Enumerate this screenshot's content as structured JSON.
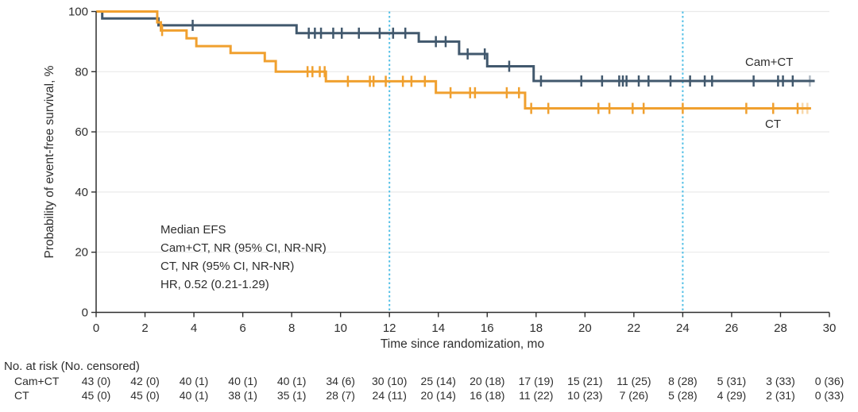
{
  "chart_data": {
    "type": "line",
    "subtype": "kaplan-meier-step",
    "title": "",
    "xlabel": "Time since randomization, mo",
    "ylabel": "Probability of event-free survival, %",
    "xlim": [
      0,
      30
    ],
    "ylim": [
      0,
      100
    ],
    "x_ticks": [
      0,
      2,
      4,
      6,
      8,
      10,
      12,
      14,
      16,
      18,
      20,
      22,
      24,
      26,
      28,
      30
    ],
    "y_ticks": [
      0,
      20,
      40,
      60,
      80,
      100
    ],
    "grid": "horizontal-light",
    "reference_lines_x": [
      12,
      24
    ],
    "colors": {
      "reference_line": "#55c0e6",
      "grid": "#eaeaea",
      "axis": "#2e2e2e"
    },
    "annotation": {
      "lines": [
        "Median EFS",
        "Cam+CT, NR (95% CI, NR-NR)",
        "CT, NR (95% CI, NR-NR)",
        "HR, 0.52 (0.21-1.29)"
      ]
    },
    "series": [
      {
        "name": "Cam+CT",
        "color": "#41586d",
        "steps": [
          [
            0,
            100
          ],
          [
            0.25,
            97.7
          ],
          [
            2.55,
            95.4
          ],
          [
            8.2,
            92.8
          ],
          [
            13.2,
            90.0
          ],
          [
            14.85,
            85.9
          ],
          [
            16.0,
            81.8
          ],
          [
            17.9,
            76.9
          ]
        ],
        "end_t": 29.4,
        "censors": [
          [
            3.95,
            95.4
          ],
          [
            8.7,
            92.8
          ],
          [
            8.95,
            92.8
          ],
          [
            9.2,
            92.8
          ],
          [
            9.7,
            92.8
          ],
          [
            10.05,
            92.8
          ],
          [
            10.75,
            92.8
          ],
          [
            11.6,
            92.8
          ],
          [
            12.15,
            92.8
          ],
          [
            12.65,
            92.8
          ],
          [
            13.9,
            90.0
          ],
          [
            14.3,
            90.0
          ],
          [
            15.2,
            85.9
          ],
          [
            15.9,
            85.9
          ],
          [
            16.9,
            81.8
          ],
          [
            18.2,
            76.9
          ],
          [
            19.85,
            76.9
          ],
          [
            20.7,
            76.9
          ],
          [
            21.4,
            76.9
          ],
          [
            21.55,
            76.9
          ],
          [
            21.7,
            76.9
          ],
          [
            22.2,
            76.9
          ],
          [
            22.6,
            76.9
          ],
          [
            23.5,
            76.9
          ],
          [
            24.3,
            76.9
          ],
          [
            24.9,
            76.9
          ],
          [
            25.2,
            76.9
          ],
          [
            26.9,
            76.9
          ],
          [
            27.9,
            76.9
          ],
          [
            28.1,
            76.9
          ],
          [
            28.5,
            76.9
          ]
        ],
        "light_censors": [
          [
            29.2,
            76.9
          ]
        ]
      },
      {
        "name": "CT",
        "color": "#f0a02f",
        "steps": [
          [
            0,
            100
          ],
          [
            2.5,
            96.4
          ],
          [
            2.65,
            93.7
          ],
          [
            3.7,
            91.1
          ],
          [
            4.1,
            88.5
          ],
          [
            5.5,
            86.2
          ],
          [
            6.9,
            83.5
          ],
          [
            7.35,
            80.0
          ],
          [
            9.4,
            76.8
          ],
          [
            13.9,
            73.0
          ],
          [
            17.55,
            67.8
          ]
        ],
        "end_t": 29.25,
        "censors": [
          [
            2.7,
            93.7
          ],
          [
            8.65,
            80.0
          ],
          [
            8.85,
            80.0
          ],
          [
            9.15,
            80.0
          ],
          [
            9.35,
            80.0
          ],
          [
            10.3,
            76.8
          ],
          [
            11.2,
            76.8
          ],
          [
            11.35,
            76.8
          ],
          [
            11.85,
            76.8
          ],
          [
            12.55,
            76.8
          ],
          [
            12.9,
            76.8
          ],
          [
            13.45,
            76.8
          ],
          [
            14.5,
            73.0
          ],
          [
            15.3,
            73.0
          ],
          [
            15.5,
            73.0
          ],
          [
            16.8,
            73.0
          ],
          [
            17.3,
            73.0
          ],
          [
            17.8,
            67.8
          ],
          [
            18.5,
            67.8
          ],
          [
            20.55,
            67.8
          ],
          [
            21.0,
            67.8
          ],
          [
            21.95,
            67.8
          ],
          [
            22.4,
            67.8
          ],
          [
            24.0,
            67.8
          ],
          [
            26.6,
            67.8
          ],
          [
            27.7,
            67.8
          ],
          [
            28.7,
            67.8
          ]
        ],
        "light_censors": [
          [
            28.9,
            67.8
          ],
          [
            29.1,
            67.8
          ]
        ]
      }
    ],
    "number_at_risk": {
      "header": "No. at risk (No. censored)",
      "rows": [
        {
          "label": "Cam+CT",
          "values": [
            "43 (0)",
            "42 (0)",
            "40 (1)",
            "40 (1)",
            "40 (1)",
            "34 (6)",
            "30 (10)",
            "25 (14)",
            "20 (18)",
            "17 (19)",
            "15 (21)",
            "11 (25)",
            "8 (28)",
            "5 (31)",
            "3 (33)",
            "0 (36)"
          ]
        },
        {
          "label": "CT",
          "values": [
            "45 (0)",
            "45 (0)",
            "40 (1)",
            "38 (1)",
            "35 (1)",
            "28 (7)",
            "24 (11)",
            "20 (14)",
            "16 (18)",
            "11 (22)",
            "10 (23)",
            "7 (26)",
            "5 (28)",
            "4 (29)",
            "2 (31)",
            "0 (33)"
          ]
        }
      ]
    }
  }
}
